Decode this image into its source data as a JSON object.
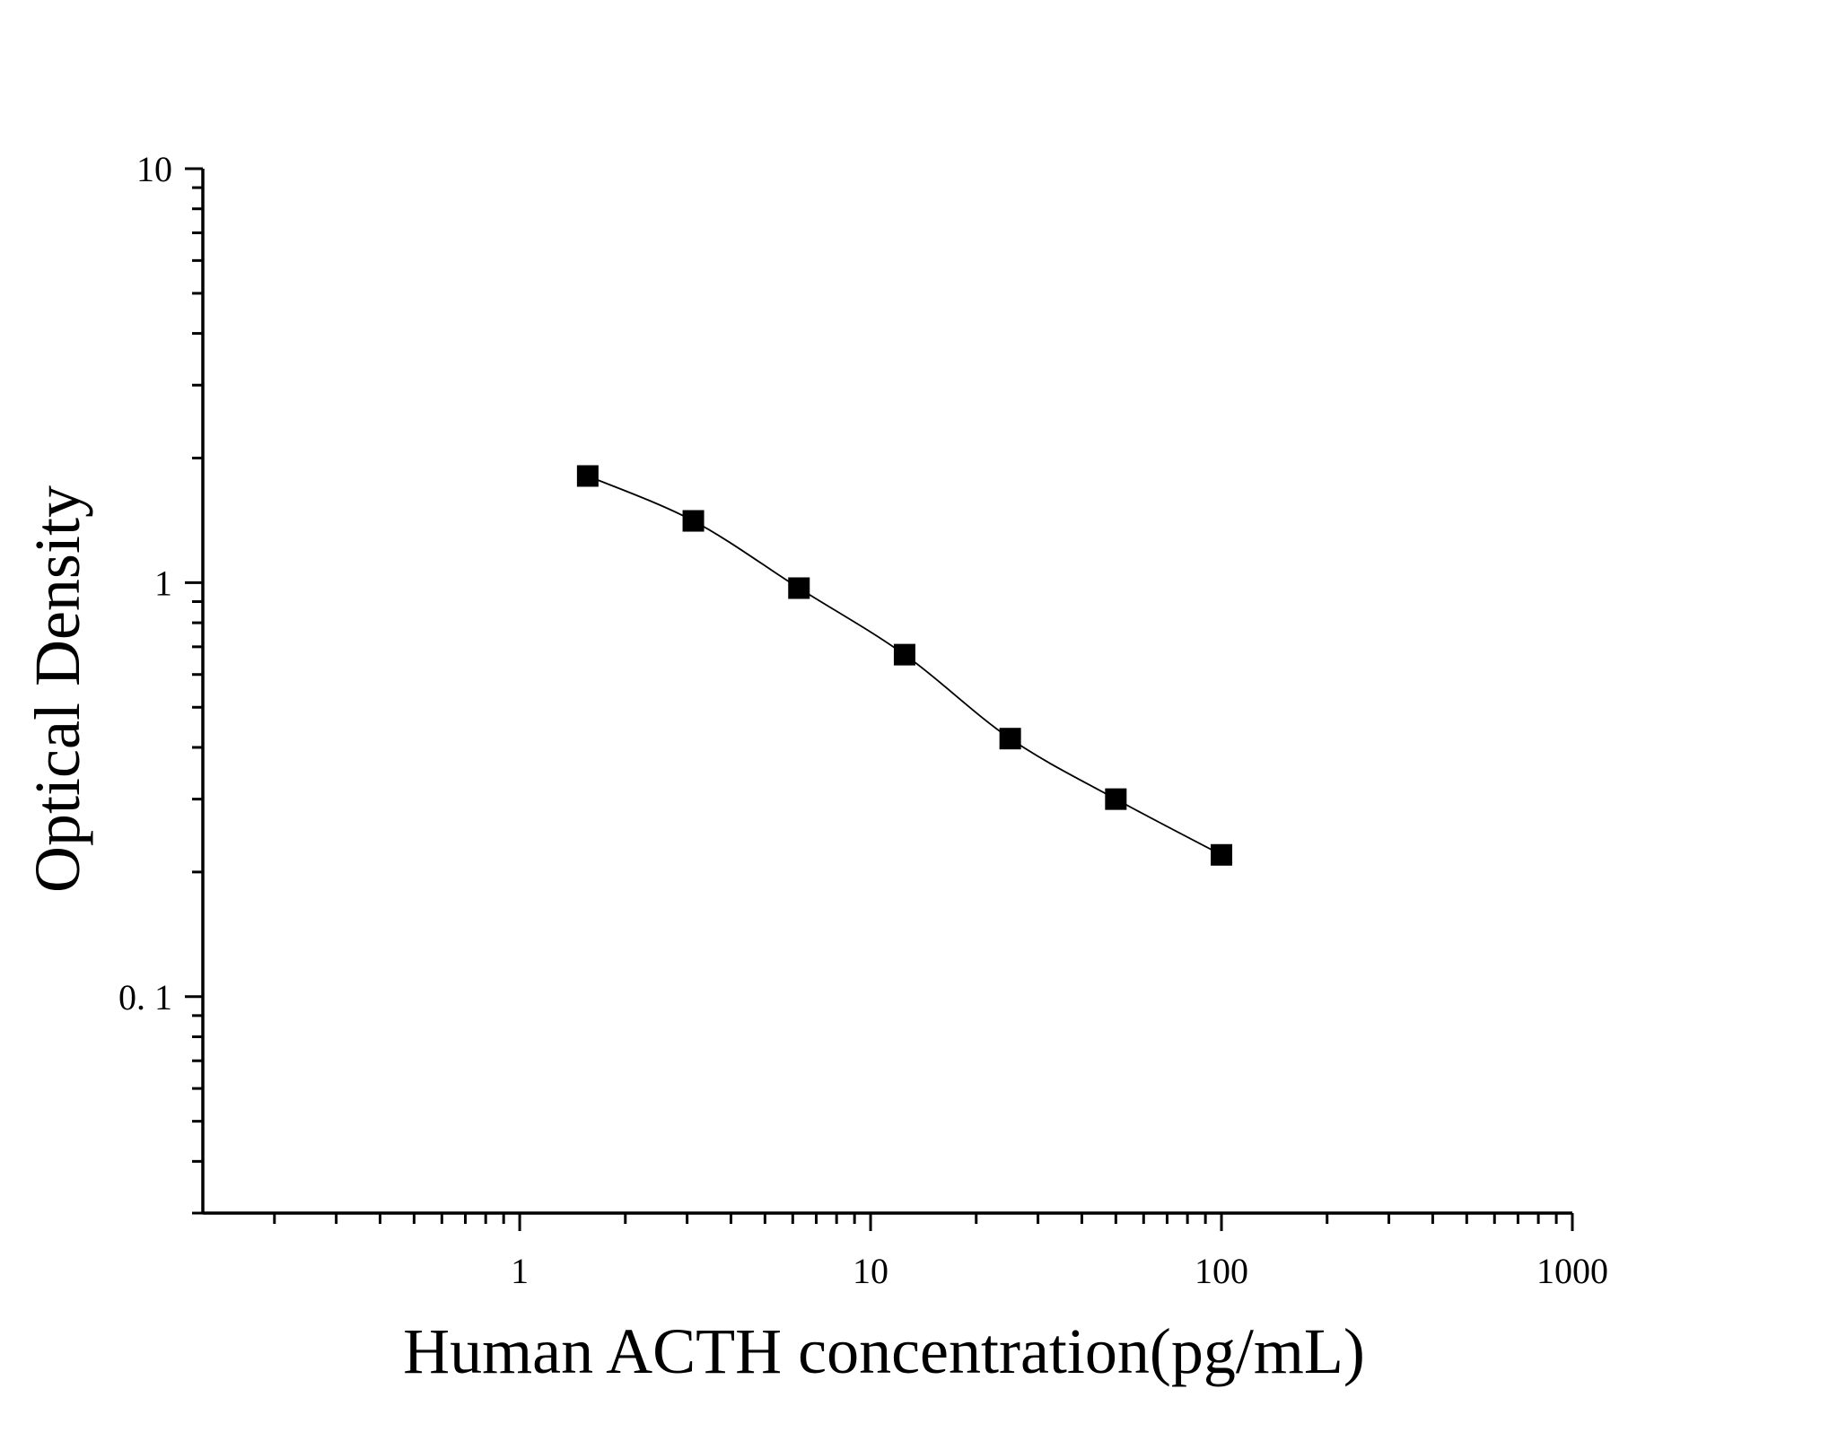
{
  "chart_data": {
    "type": "scatter",
    "xlabel": "Human ACTH concentration(pg/mL)",
    "ylabel": "Optical Density",
    "x_scale": "log",
    "y_scale": "log",
    "xlim": [
      0.125,
      1000
    ],
    "ylim": [
      0.03,
      10
    ],
    "x_ticks": [
      {
        "value": 1,
        "label": "1"
      },
      {
        "value": 10,
        "label": "10"
      },
      {
        "value": 100,
        "label": "100"
      },
      {
        "value": 1000,
        "label": "1000"
      }
    ],
    "y_ticks": [
      {
        "value": 0.1,
        "label": "0. 1"
      },
      {
        "value": 1,
        "label": "1"
      },
      {
        "value": 10,
        "label": "10"
      }
    ],
    "grid": false,
    "series": [
      {
        "marker": "square",
        "color": "#000000",
        "fit_curve": true,
        "x": [
          1.5625,
          3.125,
          6.25,
          12.5,
          25,
          50,
          100
        ],
        "y": [
          1.81,
          1.41,
          0.97,
          0.67,
          0.42,
          0.3,
          0.22
        ]
      }
    ]
  }
}
